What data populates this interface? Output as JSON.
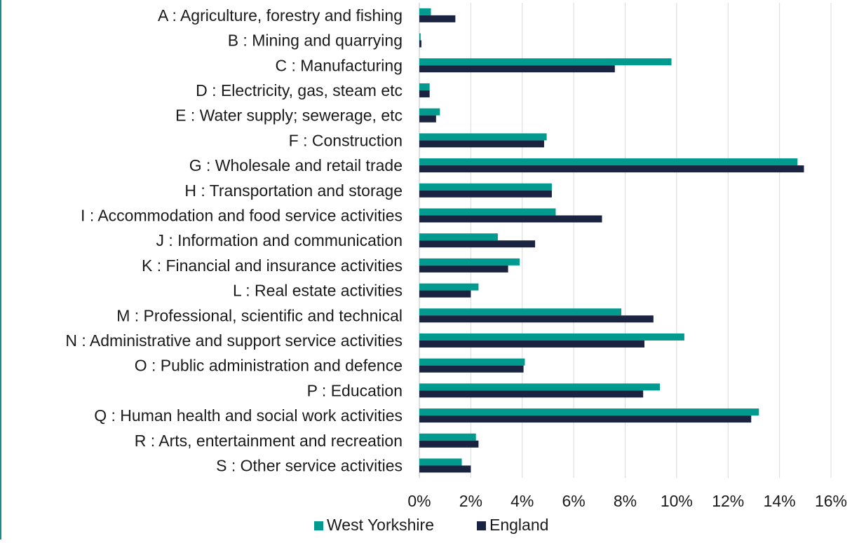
{
  "chart_data": {
    "type": "bar",
    "orientation": "horizontal",
    "categories": [
      "A : Agriculture, forestry and fishing",
      "B : Mining and quarrying",
      "C : Manufacturing",
      "D : Electricity, gas, steam etc",
      "E : Water supply; sewerage, etc",
      "F : Construction",
      "G : Wholesale and retail trade",
      "H : Transportation and storage",
      "I : Accommodation and food service activities",
      "J : Information and communication",
      "K : Financial and insurance activities",
      "L : Real estate activities",
      "M : Professional, scientific and technical",
      "N : Administrative and support service activities",
      "O : Public administration and defence",
      "P : Education",
      "Q : Human health and social work activities",
      "R : Arts, entertainment and recreation",
      "S : Other service activities"
    ],
    "series": [
      {
        "name": "West Yorkshire",
        "color": "#009a8e",
        "values": [
          0.45,
          0.05,
          9.8,
          0.4,
          0.8,
          4.95,
          14.7,
          5.15,
          5.3,
          3.05,
          3.9,
          2.3,
          7.85,
          10.3,
          4.1,
          9.35,
          13.2,
          2.2,
          1.65
        ]
      },
      {
        "name": "England",
        "color": "#1a2340",
        "values": [
          1.4,
          0.08,
          7.6,
          0.4,
          0.65,
          4.85,
          14.95,
          5.15,
          7.1,
          4.5,
          3.45,
          2.0,
          9.1,
          8.75,
          4.05,
          8.7,
          12.9,
          2.3,
          2.0
        ]
      }
    ],
    "xlim": [
      0,
      16
    ],
    "xticks": [
      "0%",
      "2%",
      "4%",
      "6%",
      "8%",
      "10%",
      "12%",
      "14%",
      "16%"
    ],
    "xtick_values": [
      0,
      2,
      4,
      6,
      8,
      10,
      12,
      14,
      16
    ],
    "title": "",
    "xlabel": "",
    "ylabel": "",
    "grid": "vertical",
    "legend_position": "bottom"
  }
}
